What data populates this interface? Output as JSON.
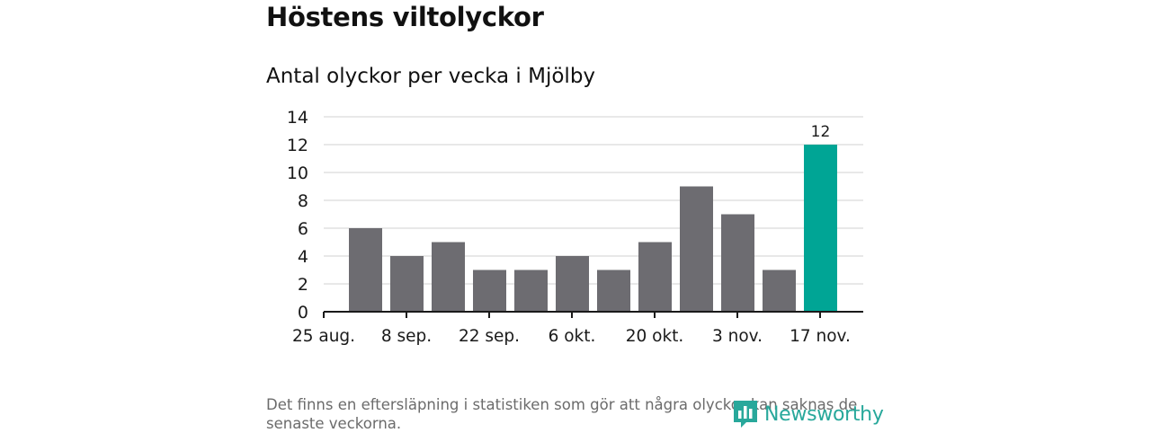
{
  "title": "Höstens viltolyckor",
  "subtitle": "Antal olyckor per vecka i Mjölby",
  "note": "Det finns en eftersläpning i statistiken som gör att några olyckor kan saknas de senaste veckorna.",
  "logo": {
    "text": "Newsworthy",
    "icon": "bar-chart-logo-icon",
    "color": "#28a89b"
  },
  "chart_data": {
    "type": "bar",
    "x_tick_labels": [
      "25 aug.",
      "8 sep.",
      "22 sep.",
      "6 okt.",
      "20 okt.",
      "3 nov.",
      "17 nov."
    ],
    "values": [
      6,
      4,
      5,
      3,
      3,
      4,
      3,
      5,
      9,
      7,
      3,
      12
    ],
    "highlight_index": 11,
    "highlight_label": "12",
    "ylim": [
      0,
      14
    ],
    "yticks": [
      0,
      2,
      4,
      6,
      8,
      10,
      12,
      14
    ],
    "grid": true,
    "colors": {
      "bar": "#6d6c71",
      "highlight": "#00a595",
      "grid": "#d9d9d9",
      "axis": "#1a1a1a"
    }
  }
}
